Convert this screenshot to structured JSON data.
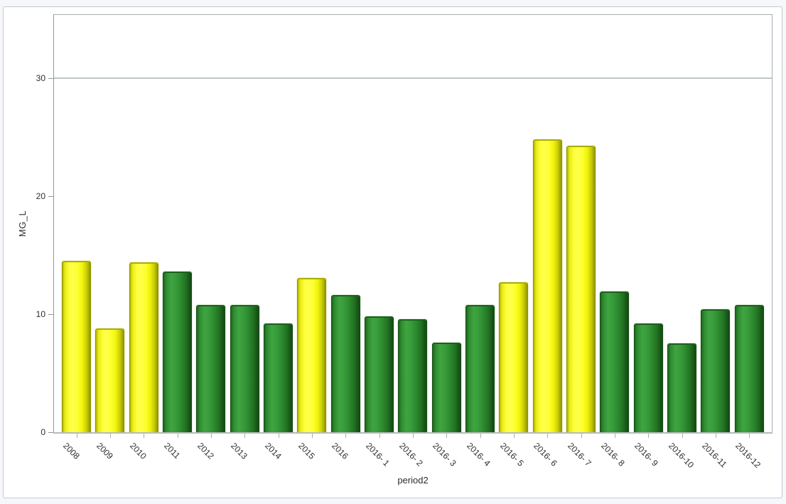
{
  "window": {
    "background": "#f6f7fb",
    "panel_background": "#ffffff",
    "panel_border": "#c6c8d0"
  },
  "chart_data": {
    "type": "bar",
    "title": "",
    "xlabel": "period2",
    "ylabel": "MG_L",
    "ylim": [
      0,
      35.3
    ],
    "yticks": [
      0,
      10,
      20,
      30
    ],
    "grid": false,
    "reference_line_y": 30,
    "reference_line_color": "#bfc7c2",
    "axis_color": "#8f9898",
    "legend": "none",
    "x_tick_rotation_deg": 45,
    "categories": [
      "2008",
      "2009",
      "2010",
      "2011",
      "2012",
      "2013",
      "2014",
      "2015",
      "2016",
      "2016- 1",
      "2016- 2",
      "2016- 3",
      "2016- 4",
      "2016- 5",
      "2016- 6",
      "2016- 7",
      "2016- 8",
      "2016- 9",
      "2016-10",
      "2016-11",
      "2016-12"
    ],
    "values": [
      14.5,
      8.8,
      14.4,
      13.6,
      10.8,
      10.8,
      9.2,
      13.1,
      11.6,
      9.8,
      9.6,
      7.6,
      10.8,
      12.7,
      24.8,
      24.3,
      11.9,
      9.2,
      7.5,
      10.4,
      10.8
    ],
    "bar_colors": [
      "yellow",
      "yellow",
      "yellow",
      "green",
      "green",
      "green",
      "green",
      "yellow",
      "green",
      "green",
      "green",
      "green",
      "green",
      "yellow",
      "yellow",
      "yellow",
      "green",
      "green",
      "green",
      "green",
      "green"
    ],
    "group_colors": {
      "yellow": "#ffff33",
      "green": "#2f8f2f"
    }
  }
}
